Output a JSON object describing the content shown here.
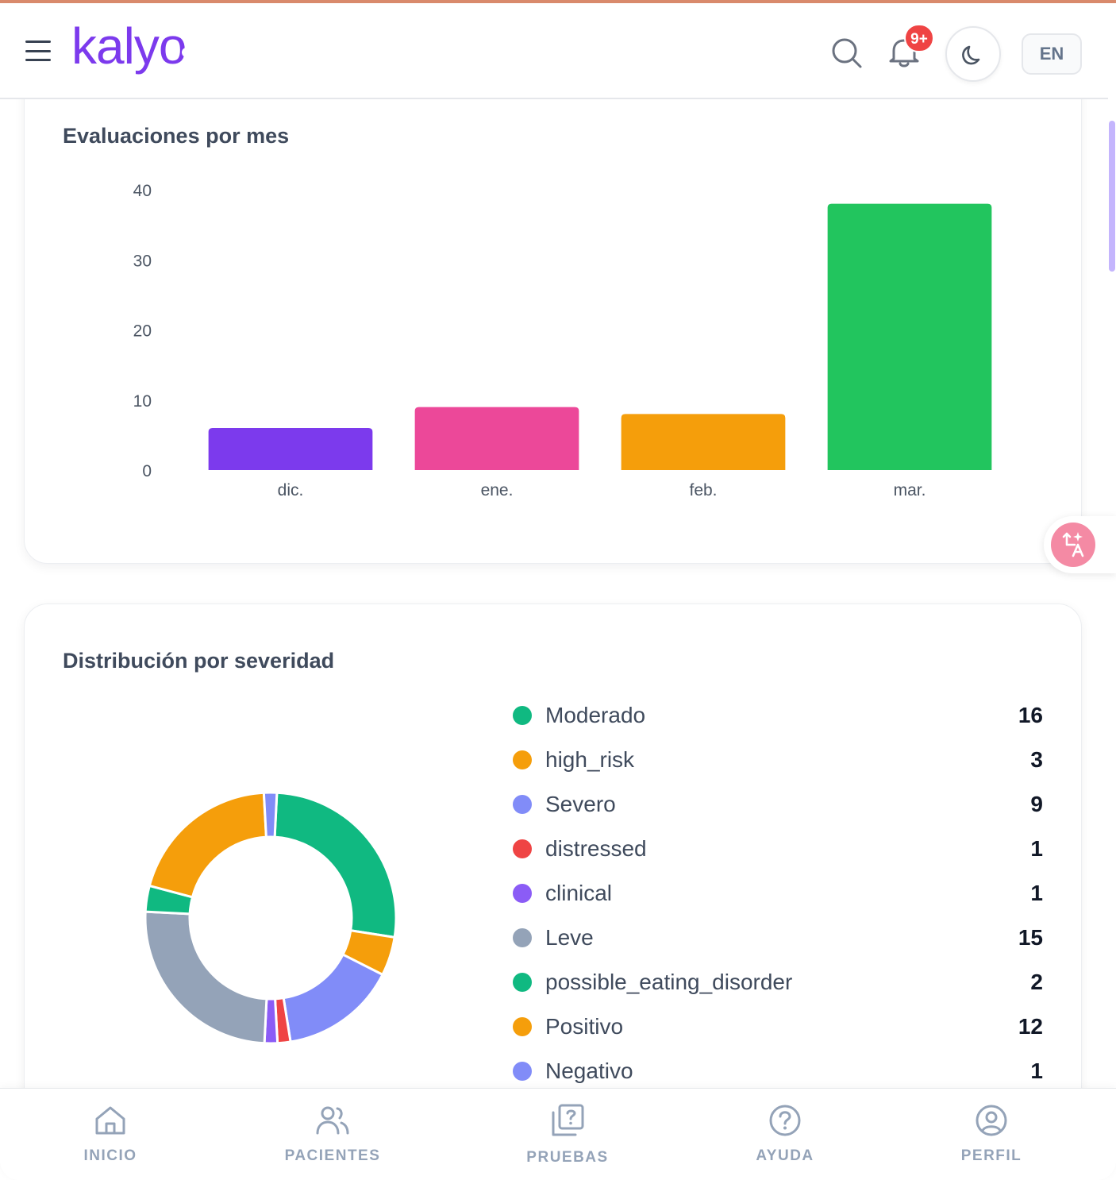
{
  "header": {
    "logo_text": "kalyo",
    "notification_badge": "9+",
    "language_label": "EN"
  },
  "colors": {
    "brand": "#7c3aed",
    "badge": "#ef4444"
  },
  "icons": {
    "menu": "hamburger-menu-icon",
    "search": "search-icon",
    "notifications": "bell-icon",
    "theme": "moon-icon",
    "translate": "translate-icon"
  },
  "cards": {
    "monthly_title": "Evaluaciones por mes",
    "severity_title": "Distribución por severidad"
  },
  "chart_data": [
    {
      "type": "bar",
      "title": "Evaluaciones por mes",
      "categories": [
        "dic.",
        "ene.",
        "feb.",
        "mar."
      ],
      "values": [
        6,
        9,
        8,
        38
      ],
      "colors": [
        "#7c3aed",
        "#ec4899",
        "#f59e0b",
        "#22c55e"
      ],
      "yticks": [
        0,
        10,
        20,
        30,
        40
      ],
      "ylim": [
        0,
        40
      ],
      "grid": false,
      "legend": "none"
    },
    {
      "type": "pie",
      "style": "donut",
      "title": "Distribución por severidad",
      "labels": [
        "Moderado",
        "high_risk",
        "Severo",
        "distressed",
        "clinical",
        "Leve",
        "possible_eating_disorder",
        "Positivo",
        "Negativo"
      ],
      "values": [
        16,
        3,
        9,
        1,
        1,
        15,
        2,
        12,
        1
      ],
      "colors": [
        "#10b981",
        "#f59e0b",
        "#818cf8",
        "#ef4444",
        "#8b5cf6",
        "#94a3b8",
        "#10b981",
        "#f59e0b",
        "#818cf8"
      ],
      "legend": "right"
    }
  ],
  "bottom_nav": [
    {
      "label": "INICIO",
      "icon": "home-icon"
    },
    {
      "label": "PACIENTES",
      "icon": "users-icon"
    },
    {
      "label": "PRUEBAS",
      "icon": "tests-icon"
    },
    {
      "label": "AYUDA",
      "icon": "help-icon"
    },
    {
      "label": "PERFIL",
      "icon": "profile-icon"
    }
  ]
}
